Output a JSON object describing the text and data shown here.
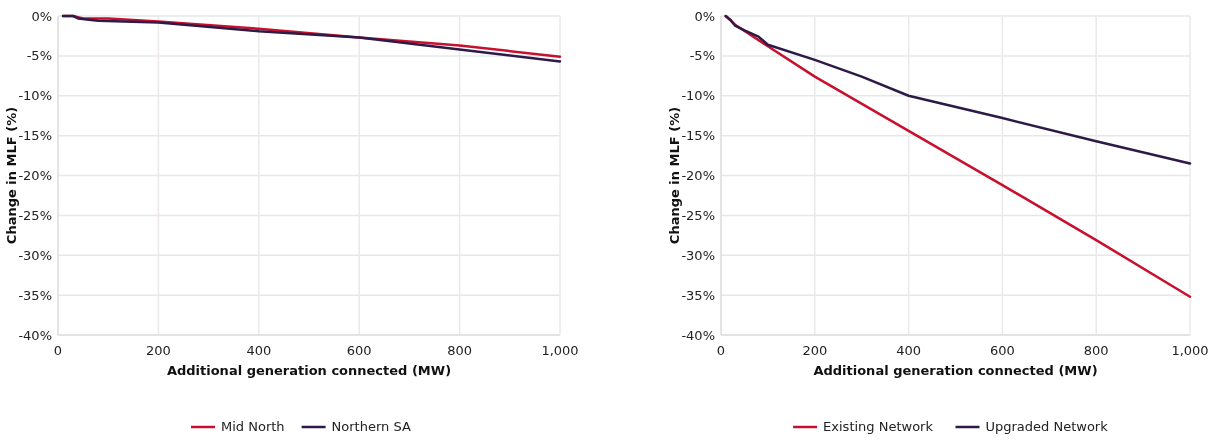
{
  "chart_data": [
    {
      "type": "line",
      "xlabel": "Additional generation connected (MW)",
      "ylabel": "Change in MLF (%)",
      "xlim": [
        0,
        1000
      ],
      "ylim": [
        -40,
        0
      ],
      "xticks": [
        0,
        200,
        400,
        600,
        800,
        {
          "value": 1000,
          "label": "1,000"
        }
      ],
      "yticks": [
        {
          "value": -40,
          "label": "-40%"
        },
        {
          "value": -35,
          "label": "-35%"
        },
        {
          "value": -30,
          "label": "-30%"
        },
        {
          "value": -25,
          "label": "-25%"
        },
        {
          "value": -20,
          "label": "-20%"
        },
        {
          "value": -15,
          "label": "-15%"
        },
        {
          "value": -10,
          "label": "-10%"
        },
        {
          "value": -5,
          "label": "-5%"
        },
        {
          "value": 0,
          "label": "0%"
        }
      ],
      "grid": true,
      "legend": "bottom",
      "marker": "none",
      "line_style": "solid",
      "series": [
        {
          "name": "Mid North",
          "color": "#c8102e",
          "x": [
            10,
            30,
            50,
            100,
            200,
            400,
            600,
            800,
            1000
          ],
          "values": [
            0,
            0,
            -0.3,
            -0.3,
            -0.7,
            -1.6,
            -2.7,
            -3.7,
            -5.1
          ]
        },
        {
          "name": "Northern SA",
          "color": "#2e1a47",
          "x": [
            10,
            30,
            40,
            80,
            200,
            400,
            600,
            800,
            1000
          ],
          "values": [
            0,
            0,
            -0.3,
            -0.6,
            -0.8,
            -1.9,
            -2.7,
            -4.2,
            -5.7
          ]
        }
      ]
    },
    {
      "type": "line",
      "xlabel": "Additional generation connected (MW)",
      "ylabel": "Change in MLF (%)",
      "xlim": [
        0,
        1000
      ],
      "ylim": [
        -40,
        0
      ],
      "xticks": [
        0,
        200,
        400,
        600,
        800,
        {
          "value": 1000,
          "label": "1,000"
        }
      ],
      "yticks": [
        {
          "value": -40,
          "label": "-40%"
        },
        {
          "value": -35,
          "label": "-35%"
        },
        {
          "value": -30,
          "label": "-30%"
        },
        {
          "value": -25,
          "label": "-25%"
        },
        {
          "value": -20,
          "label": "-20%"
        },
        {
          "value": -15,
          "label": "-15%"
        },
        {
          "value": -10,
          "label": "-10%"
        },
        {
          "value": -5,
          "label": "-5%"
        },
        {
          "value": 0,
          "label": "0%"
        }
      ],
      "grid": true,
      "legend": "bottom",
      "marker": "none",
      "line_style": "solid",
      "series": [
        {
          "name": "Existing Network",
          "color": "#c8102e",
          "x": [
            10,
            20,
            30,
            100,
            200,
            400,
            600,
            800,
            1000
          ],
          "values": [
            0,
            -0.5,
            -1.1,
            -3.8,
            -7.6,
            -14.4,
            -21.2,
            -28.1,
            -35.2
          ]
        },
        {
          "name": "Upgraded Network",
          "color": "#2e1a47",
          "x": [
            10,
            20,
            30,
            50,
            80,
            100,
            200,
            300,
            400,
            600,
            800,
            1000
          ],
          "values": [
            0,
            -0.5,
            -1.2,
            -1.8,
            -2.6,
            -3.6,
            -5.5,
            -7.6,
            -10,
            -12.8,
            -15.7,
            -18.5
          ]
        }
      ]
    }
  ]
}
